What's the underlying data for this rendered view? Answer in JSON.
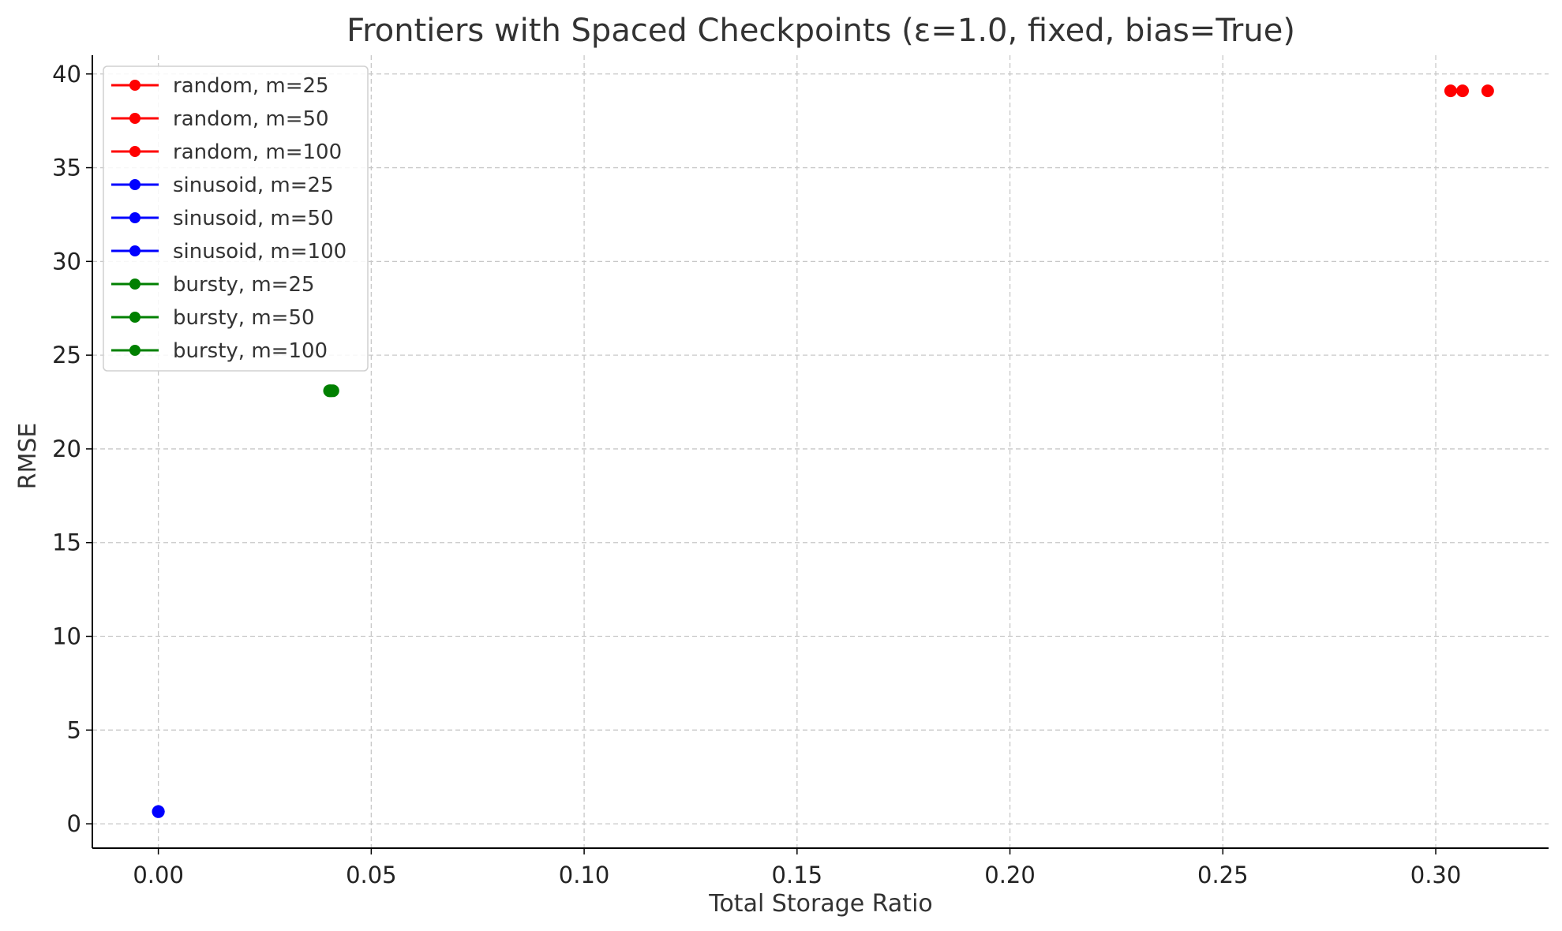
{
  "chart_data": {
    "type": "line",
    "title": "Frontiers with Spaced Checkpoints (ε=1.0, fixed, bias=True)",
    "xlabel": "Total Storage Ratio",
    "ylabel": "RMSE",
    "xlim": [
      -0.0155,
      0.3265
    ],
    "ylim": [
      -1.3,
      41.0
    ],
    "xticks": [
      0.0,
      0.05,
      0.1,
      0.15,
      0.2,
      0.25,
      0.3
    ],
    "xtick_labels": [
      "0.00",
      "0.05",
      "0.10",
      "0.15",
      "0.20",
      "0.25",
      "0.30"
    ],
    "yticks": [
      0,
      5,
      10,
      15,
      20,
      25,
      30,
      35,
      40
    ],
    "ytick_labels": [
      "0",
      "5",
      "10",
      "15",
      "20",
      "25",
      "30",
      "35",
      "40"
    ],
    "grid": true,
    "legend_position": "upper-left",
    "series": [
      {
        "name": "random, m=25",
        "color": "#ff0000",
        "x": [
          0.3035
        ],
        "y": [
          39.1
        ]
      },
      {
        "name": "random, m=50",
        "color": "#ff0000",
        "x": [
          0.3063
        ],
        "y": [
          39.1
        ]
      },
      {
        "name": "random, m=100",
        "color": "#ff0000",
        "x": [
          0.3122
        ],
        "y": [
          39.1
        ]
      },
      {
        "name": "sinusoid, m=25",
        "color": "#0000ff",
        "x": [
          0.0
        ],
        "y": [
          0.65
        ]
      },
      {
        "name": "sinusoid, m=50",
        "color": "#0000ff",
        "x": [
          0.0
        ],
        "y": [
          0.65
        ]
      },
      {
        "name": "sinusoid, m=100",
        "color": "#0000ff",
        "x": [
          0.0
        ],
        "y": [
          0.65
        ]
      },
      {
        "name": "bursty, m=25",
        "color": "#008000",
        "x": [
          0.0402
        ],
        "y": [
          23.1
        ]
      },
      {
        "name": "bursty, m=50",
        "color": "#008000",
        "x": [
          0.0405
        ],
        "y": [
          23.1
        ]
      },
      {
        "name": "bursty, m=100",
        "color": "#008000",
        "x": [
          0.041
        ],
        "y": [
          23.1
        ]
      }
    ]
  }
}
